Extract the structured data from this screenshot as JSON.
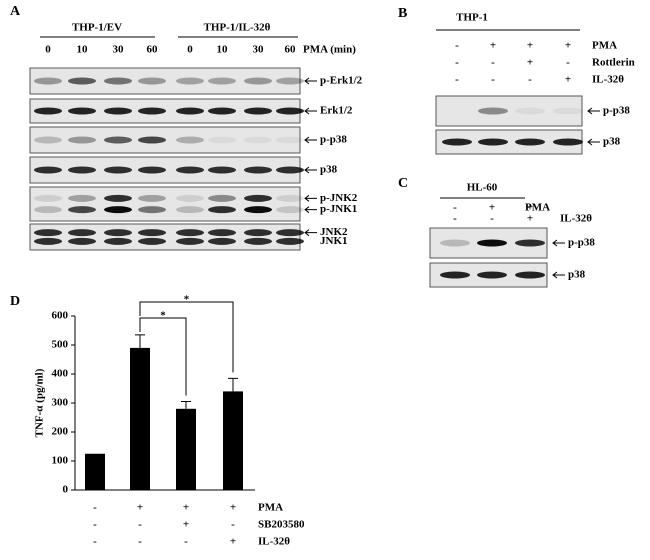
{
  "panel_a": {
    "label": "A",
    "groups": [
      "THP-1/EV",
      "THP-1/IL-32θ"
    ],
    "lanes": [
      0,
      10,
      30,
      60,
      0,
      10,
      30,
      60
    ],
    "lane_axis": "PMA (min)",
    "blots": [
      [
        "p-Erk1/2"
      ],
      [
        "Erk1/2"
      ],
      [
        "p-p38"
      ],
      [
        "p38"
      ],
      [
        "p-JNK2",
        "p-JNK1"
      ],
      [
        "JNK2",
        "JNK1"
      ]
    ]
  },
  "panel_b": {
    "label": "B",
    "cell_line": "THP-1",
    "treatments": [
      {
        "name": "PMA",
        "marks": [
          "-",
          "+",
          "+",
          "+"
        ]
      },
      {
        "name": "Rottlerin",
        "marks": [
          "-",
          "-",
          "+",
          "-"
        ]
      },
      {
        "name": "IL-32θ",
        "marks": [
          "-",
          "-",
          "-",
          "+"
        ]
      }
    ],
    "blots": [
      "p-p38",
      "p38"
    ]
  },
  "panel_c": {
    "label": "C",
    "cell_line": "HL-60",
    "treatments": [
      {
        "name": "PMA",
        "marks": [
          "-",
          "+",
          "+"
        ]
      },
      {
        "name": "IL-32θ",
        "marks": [
          "-",
          "-",
          "+"
        ]
      }
    ],
    "blots": [
      "p-p38",
      "p38"
    ]
  },
  "chart_data": {
    "type": "bar",
    "label": "D",
    "y_label": "TNF-α (pg/ml)",
    "values": [
      125,
      490,
      280,
      340
    ],
    "errors": [
      null,
      45,
      25,
      45
    ],
    "color": "#000000",
    "ylim": [
      0,
      600
    ],
    "yticks": [
      0,
      100,
      200,
      300,
      400,
      500,
      600
    ],
    "annotations": [
      "*",
      "*"
    ],
    "conditions": [
      {
        "name": "PMA",
        "marks": [
          "-",
          "+",
          "+",
          "+"
        ]
      },
      {
        "name": "SB203580",
        "marks": [
          "-",
          "-",
          "+",
          "-"
        ]
      },
      {
        "name": "IL-32θ",
        "marks": [
          "-",
          "-",
          "-",
          "+"
        ]
      }
    ]
  }
}
